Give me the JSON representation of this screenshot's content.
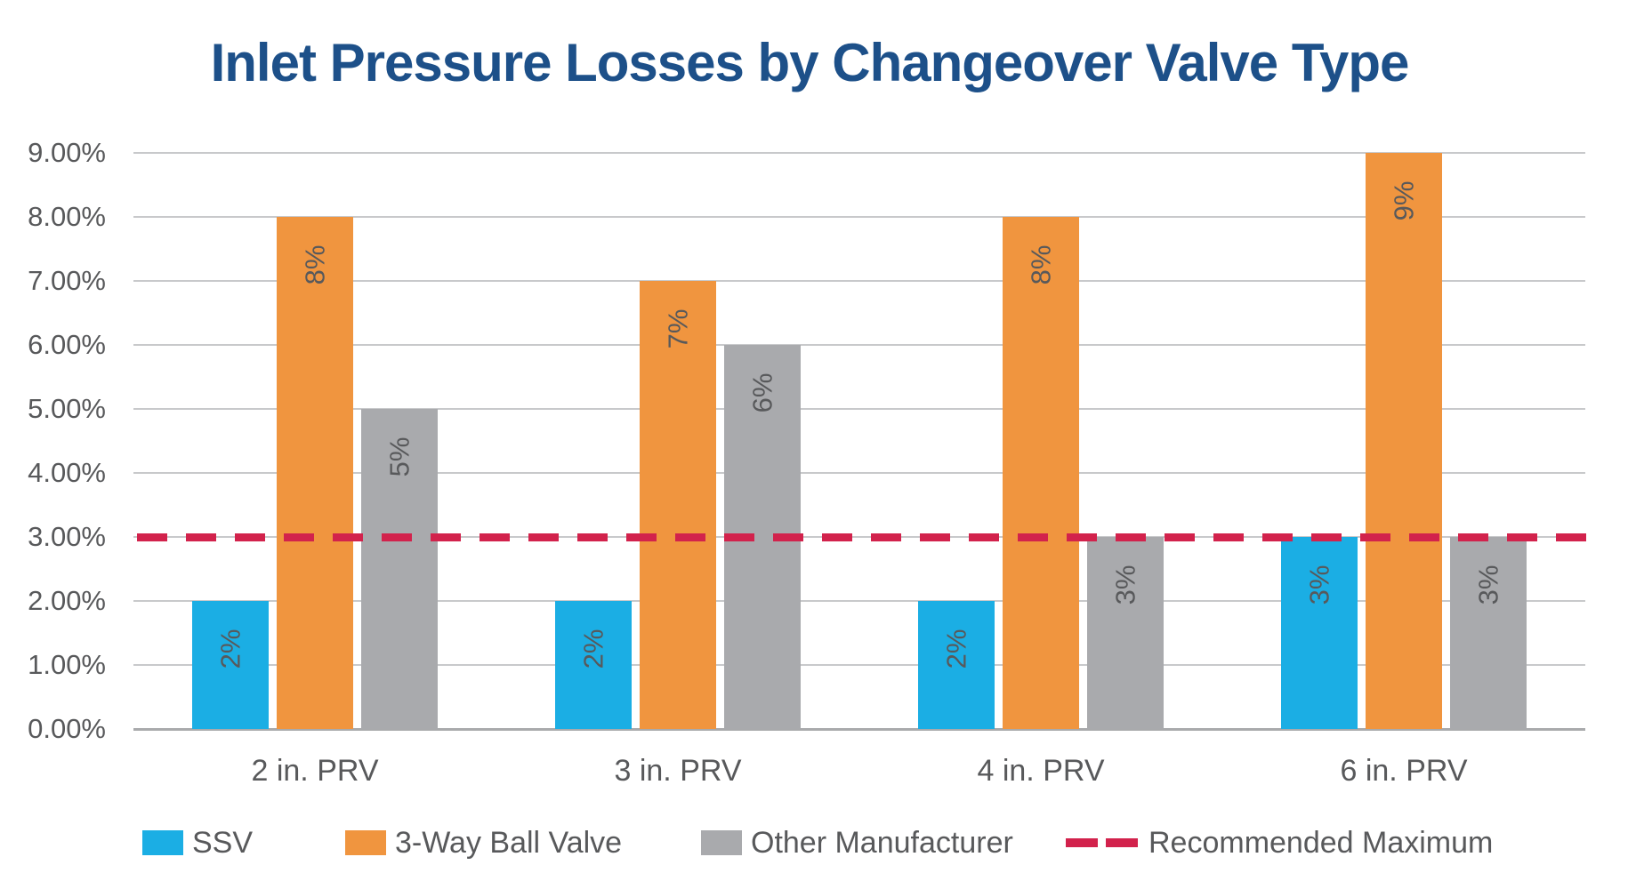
{
  "title": "Inlet Pressure Losses by Changeover Valve Type",
  "colors": {
    "title": "#1D5089",
    "text": "#58595B",
    "gridline": "#C8C9CB",
    "axis_baseline": "#A9AAAC",
    "ssv_blue": "#1BAEE4",
    "ball_valve_orange": "#F0953F",
    "other_gray": "#A9AAAD",
    "recommended_red": "#D2224C",
    "background": "#FFFFFF"
  },
  "chart_data": {
    "type": "bar",
    "title": "Inlet Pressure Losses by Changeover Valve Type",
    "categories": [
      "2 in. PRV",
      "3 in. PRV",
      "4 in. PRV",
      "6 in. PRV"
    ],
    "series": [
      {
        "name": "SSV",
        "color": "#1BAEE4",
        "values": [
          2,
          2,
          2,
          3
        ],
        "data_labels": [
          "2%",
          "2%",
          "2%",
          "3%"
        ]
      },
      {
        "name": "3-Way Ball Valve",
        "color": "#F0953F",
        "values": [
          8,
          7,
          8,
          9
        ],
        "data_labels": [
          "8%",
          "7%",
          "8%",
          "9%"
        ]
      },
      {
        "name": "Other Manufacturer",
        "color": "#A9AAAD",
        "values": [
          5,
          6,
          3,
          3
        ],
        "data_labels": [
          "5%",
          "6%",
          "3%",
          "3%"
        ]
      }
    ],
    "reference_line": {
      "name": "Recommended Maximum",
      "value": 3,
      "color": "#D2224C",
      "style": "dashed"
    },
    "y_axis": {
      "min": 0,
      "max": 9,
      "step": 1,
      "tick_labels": [
        "0.00%",
        "1.00%",
        "2.00%",
        "3.00%",
        "4.00%",
        "5.00%",
        "6.00%",
        "7.00%",
        "8.00%",
        "9.00%"
      ]
    },
    "xlabel": "",
    "ylabel": "",
    "grid": true,
    "legend_position": "bottom"
  },
  "legend": {
    "items": [
      {
        "label": "SSV",
        "swatch": "ssv-swatch"
      },
      {
        "label": "3-Way Ball Valve",
        "swatch": "ball-valve-swatch"
      },
      {
        "label": "Other Manufacturer",
        "swatch": "other-manufacturer-swatch"
      },
      {
        "label": "Recommended Maximum",
        "swatch": "recommended-maximum-dashes"
      }
    ]
  }
}
